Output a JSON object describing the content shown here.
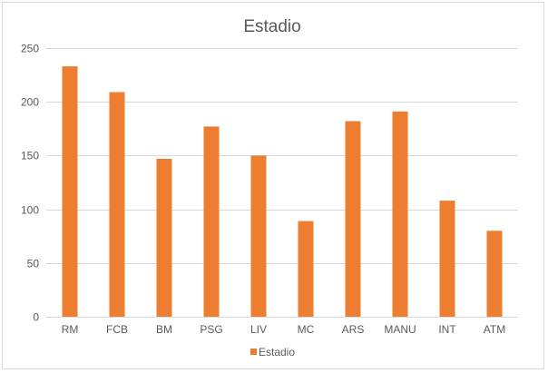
{
  "chart_data": {
    "type": "bar",
    "title": "Estadio",
    "xlabel": "",
    "ylabel": "",
    "categories": [
      "RM",
      "FCB",
      "BM",
      "PSG",
      "LIV",
      "MC",
      "ARS",
      "MANU",
      "INT",
      "ATM"
    ],
    "series": [
      {
        "name": "Estadio",
        "values": [
          233,
          209,
          147,
          177,
          150,
          89,
          182,
          191,
          108,
          80
        ],
        "color": "#ED7D31"
      }
    ],
    "ylim": [
      0,
      250
    ],
    "yticks": [
      0,
      50,
      100,
      150,
      200,
      250
    ],
    "grid": true,
    "legend": "bottom"
  },
  "colors": {
    "bar": "#ED7D31",
    "grid": "#d9d9d9",
    "text": "#595959"
  }
}
